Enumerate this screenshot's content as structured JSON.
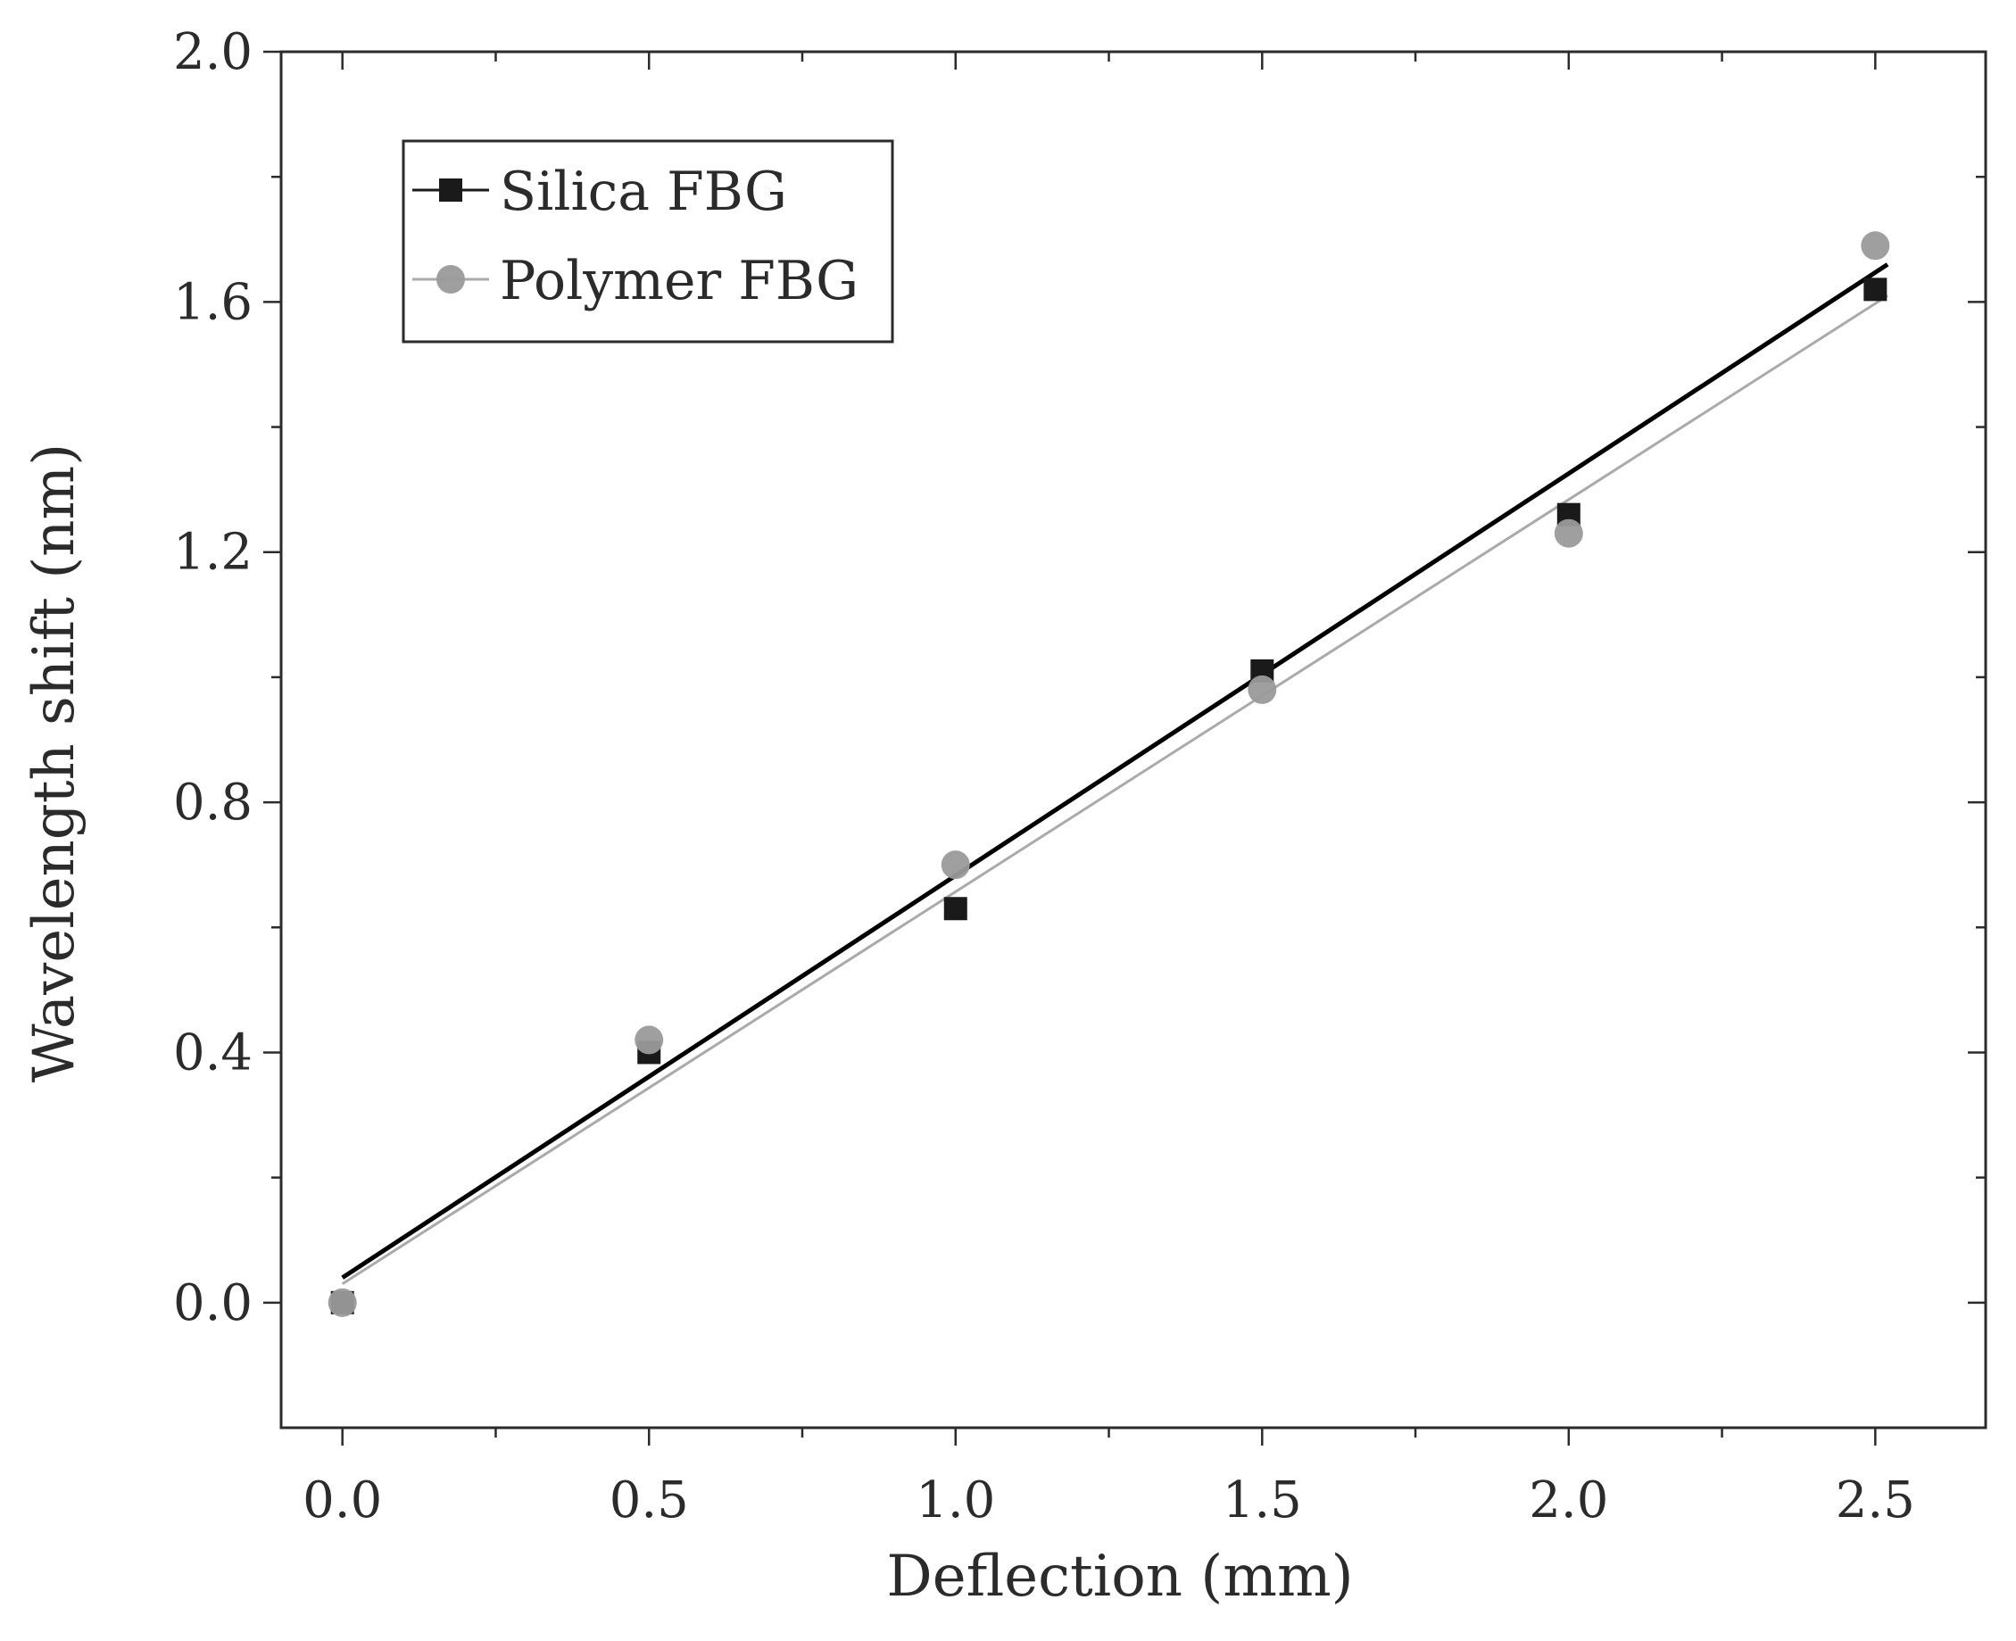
{
  "chart_data": {
    "type": "scatter",
    "title": "",
    "xlabel": "Deflection (mm)",
    "ylabel": "Wavelength shift (nm)",
    "xlim": [
      -0.1,
      2.68
    ],
    "ylim": [
      -0.2,
      2.0
    ],
    "x_ticks": [
      0.0,
      0.5,
      1.0,
      1.5,
      2.0,
      2.5
    ],
    "x_tick_labels": [
      "0.0",
      "0.5",
      "1.0",
      "1.5",
      "2.0",
      "2.5"
    ],
    "y_ticks": [
      0.0,
      0.4,
      0.8,
      1.2,
      1.6,
      2.0
    ],
    "y_tick_labels": [
      "0.0",
      "0.4",
      "0.8",
      "1.2",
      "1.6",
      "2.0"
    ],
    "grid": false,
    "legend_position": "top-left",
    "series": [
      {
        "name": "Silica FBG",
        "marker": "square",
        "color": "#1a1a1a",
        "x": [
          0.0,
          0.5,
          1.0,
          1.5,
          2.0,
          2.5
        ],
        "y": [
          0.0,
          0.4,
          0.63,
          1.01,
          1.26,
          1.62
        ],
        "fit": {
          "x": [
            0.0,
            2.52
          ],
          "y": [
            0.04,
            1.66
          ],
          "color": "#000000"
        }
      },
      {
        "name": "Polymer FBG",
        "marker": "circle",
        "color": "#9a9a9a",
        "x": [
          0.0,
          0.5,
          1.0,
          1.5,
          2.0,
          2.5
        ],
        "y": [
          0.0,
          0.42,
          0.7,
          0.98,
          1.23,
          1.69
        ],
        "fit": {
          "x": [
            0.0,
            2.52
          ],
          "y": [
            0.03,
            1.61
          ],
          "color": "#aaaaaa"
        }
      }
    ]
  }
}
